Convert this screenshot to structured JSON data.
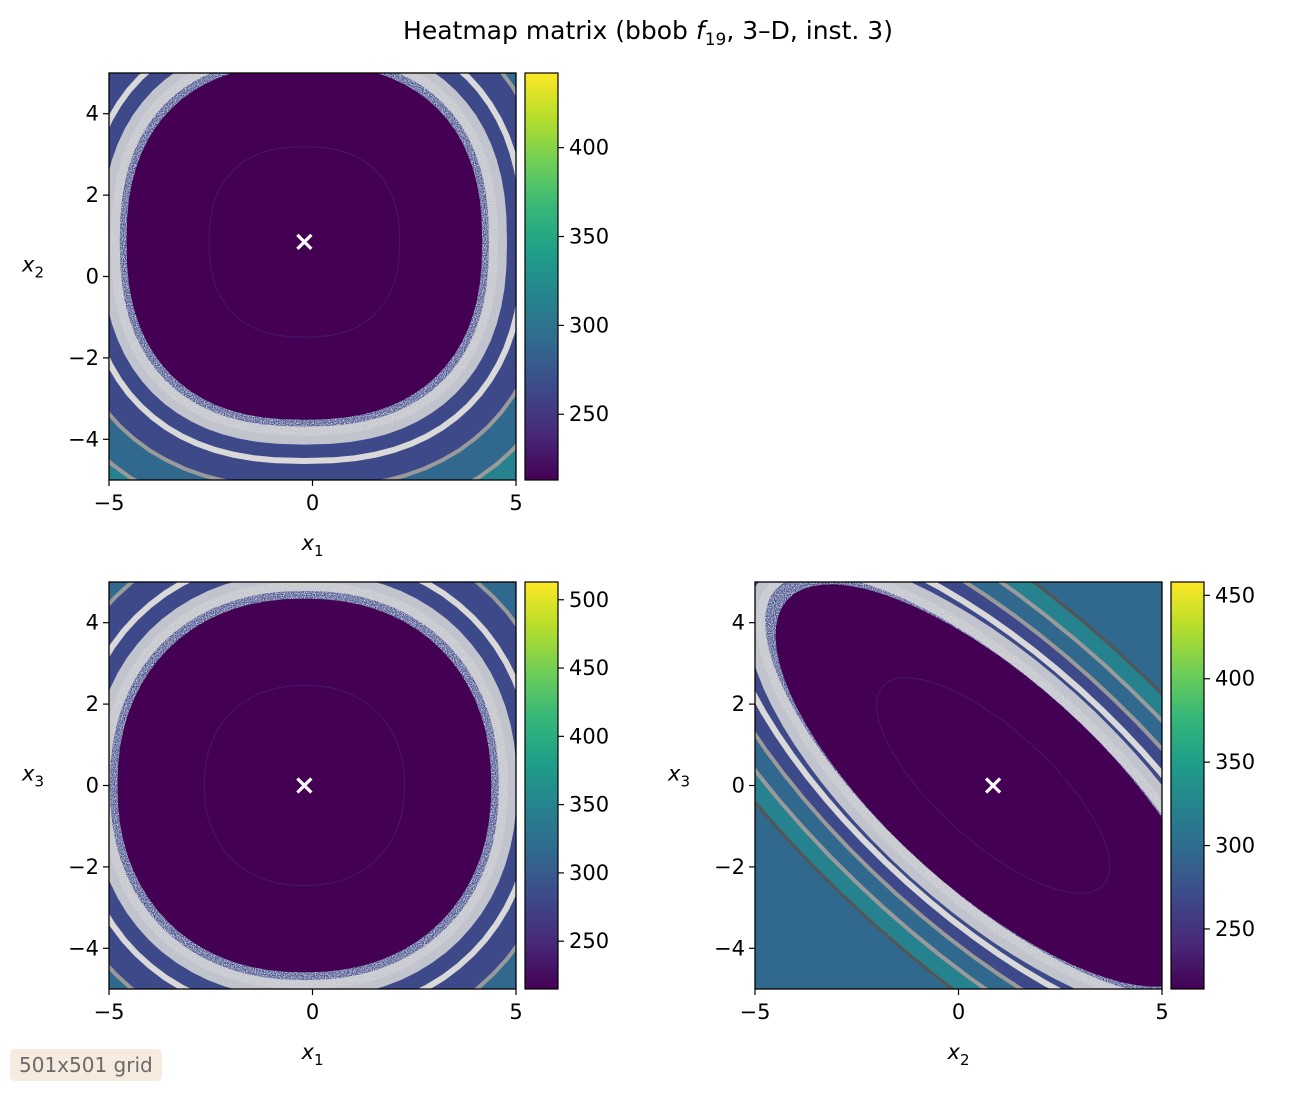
{
  "title": {
    "prefix": "Heatmap matrix (bbob ",
    "func_letter": "f",
    "func_sub": "19",
    "suffix": ", 3–D, inst. 3)"
  },
  "footnote": "501x501 grid",
  "colors": {
    "palette": [
      "#440154",
      "#482878",
      "#3e4989",
      "#31688e",
      "#26828e",
      "#1f9e89",
      "#35b779",
      "#6ece58",
      "#b5de2b",
      "#fde725"
    ],
    "sample_band": "#d9d9d9",
    "contour_gray": "#9a9a9a",
    "contour_dark": "#555555",
    "marker": "#ffffff"
  },
  "chart_data": [
    {
      "type": "heatmap",
      "xlabel": "x",
      "xlabel_sub": "1",
      "ylabel": "x",
      "ylabel_sub": "2",
      "xlim": [
        -5,
        5
      ],
      "ylim": [
        -5,
        5
      ],
      "xticks": [
        -5,
        0,
        5
      ],
      "yticks": [
        -4,
        -2,
        0,
        2,
        4
      ],
      "colorbar": {
        "min": 213,
        "max": 442,
        "ticks": [
          250,
          300,
          350,
          400
        ]
      },
      "optimum": {
        "x": -0.2,
        "y": 0.85
      },
      "basin": {
        "half_width": 3.9,
        "power": 2.4
      }
    },
    {
      "type": "heatmap",
      "xlabel": "x",
      "xlabel_sub": "1",
      "ylabel": "x",
      "ylabel_sub": "3",
      "xlim": [
        -5,
        5
      ],
      "ylim": [
        -5,
        5
      ],
      "xticks": [
        -5,
        0,
        5
      ],
      "yticks": [
        -4,
        -2,
        0,
        2,
        4
      ],
      "colorbar": {
        "min": 215,
        "max": 513,
        "ticks": [
          250,
          300,
          350,
          400,
          450,
          500
        ]
      },
      "optimum": {
        "x": -0.2,
        "y": 0.0
      },
      "basin": {
        "half_width": 4.1,
        "power": 2.2
      }
    },
    {
      "type": "heatmap",
      "xlabel": "x",
      "xlabel_sub": "2",
      "ylabel": "x",
      "ylabel_sub": "3",
      "xlim": [
        -5,
        5
      ],
      "ylim": [
        -5,
        5
      ],
      "xticks": [
        -5,
        0,
        5
      ],
      "yticks": [
        -4,
        -2,
        0,
        2,
        4
      ],
      "colorbar": {
        "min": 214,
        "max": 458,
        "ticks": [
          250,
          300,
          350,
          400,
          450
        ]
      },
      "optimum": {
        "x": 0.85,
        "y": 0.0
      },
      "basin": {
        "half_width": 3.2,
        "power": 2.0
      }
    }
  ]
}
